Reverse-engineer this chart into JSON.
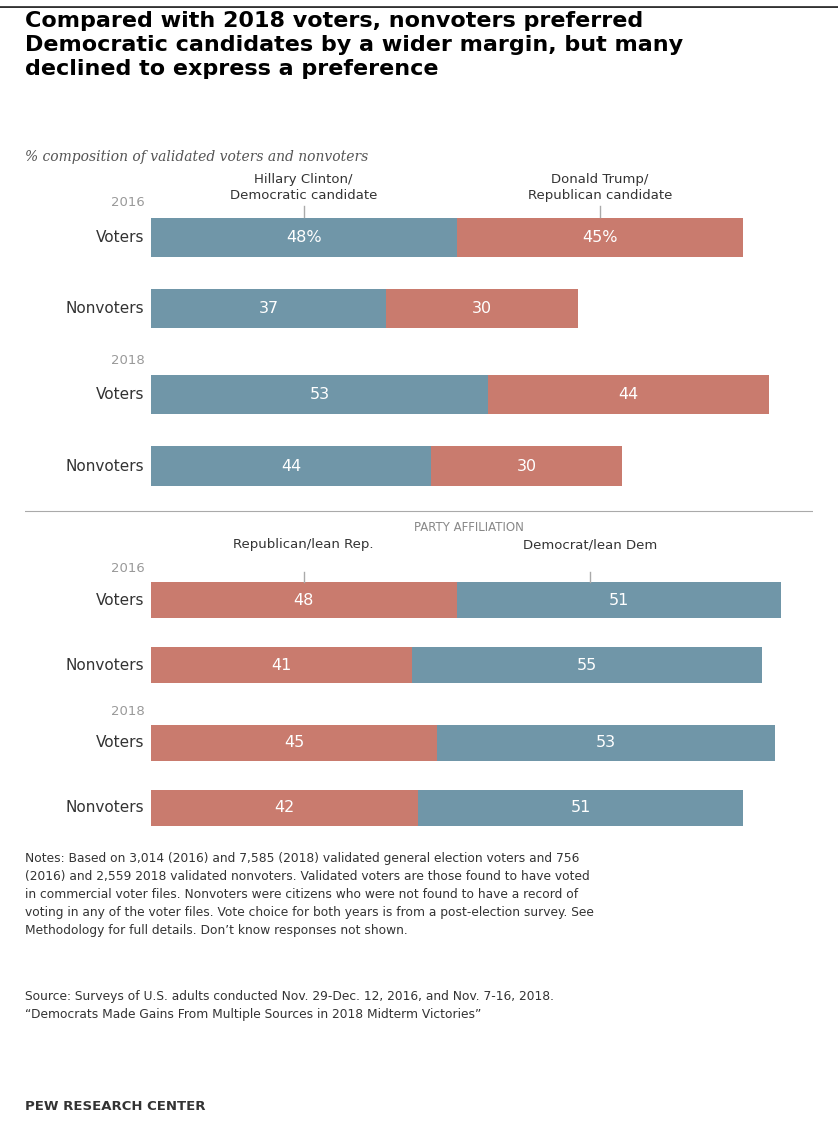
{
  "title": "Compared with 2018 voters, nonvoters preferred\nDemocratic candidates by a wider margin, but many\ndeclined to express a preference",
  "subtitle": "% composition of validated voters and nonvoters",
  "blue_color": "#7096a8",
  "red_color": "#c97b6e",
  "top_section": {
    "header_left": "Hillary Clinton/\nDemocratic candidate",
    "header_right": "Donald Trump/\nRepublican candidate",
    "groups": [
      {
        "year": "2016",
        "rows": [
          {
            "label": "Voters",
            "blue": 48,
            "red": 45,
            "blue_text": "48%",
            "red_text": "45%"
          },
          {
            "label": "Nonvoters",
            "blue": 37,
            "red": 30,
            "blue_text": "37",
            "red_text": "30"
          }
        ]
      },
      {
        "year": "2018",
        "rows": [
          {
            "label": "Voters",
            "blue": 53,
            "red": 44,
            "blue_text": "53",
            "red_text": "44"
          },
          {
            "label": "Nonvoters",
            "blue": 44,
            "red": 30,
            "blue_text": "44",
            "red_text": "30"
          }
        ]
      }
    ]
  },
  "bottom_section": {
    "section_label": "PARTY AFFILIATION",
    "header_left": "Republican/lean Rep.",
    "header_right": "Democrat/lean Dem",
    "groups": [
      {
        "year": "2016",
        "rows": [
          {
            "label": "Voters",
            "red": 48,
            "blue": 51,
            "red_text": "48",
            "blue_text": "51"
          },
          {
            "label": "Nonvoters",
            "red": 41,
            "blue": 55,
            "red_text": "41",
            "blue_text": "55"
          }
        ]
      },
      {
        "year": "2018",
        "rows": [
          {
            "label": "Voters",
            "red": 45,
            "blue": 53,
            "red_text": "45",
            "blue_text": "53"
          },
          {
            "label": "Nonvoters",
            "red": 42,
            "blue": 51,
            "red_text": "42",
            "blue_text": "51"
          }
        ]
      }
    ]
  },
  "notes": "Notes: Based on 3,014 (2016) and 7,585 (2018) validated general election voters and 756\n(2016) and 2,559 2018 validated nonvoters. Validated voters are those found to have voted\nin commercial voter files. Nonvoters were citizens who were not found to have a record of\nvoting in any of the voter files. Vote choice for both years is from a post-election survey. See\nMethodology for full details. Don’t know responses not shown.",
  "source": "Source: Surveys of U.S. adults conducted Nov. 29-Dec. 12, 2016, and Nov. 7-16, 2018.\n“Democrats Made Gains From Multiple Sources in 2018 Midterm Victories”",
  "pew": "PEW RESEARCH CENTER",
  "bg_color": "#ffffff",
  "label_color": "#333333",
  "year_color": "#999999",
  "bar_height": 0.55,
  "bar_label_fontsize": 11.5,
  "tick_line_color": "#aaaaaa"
}
